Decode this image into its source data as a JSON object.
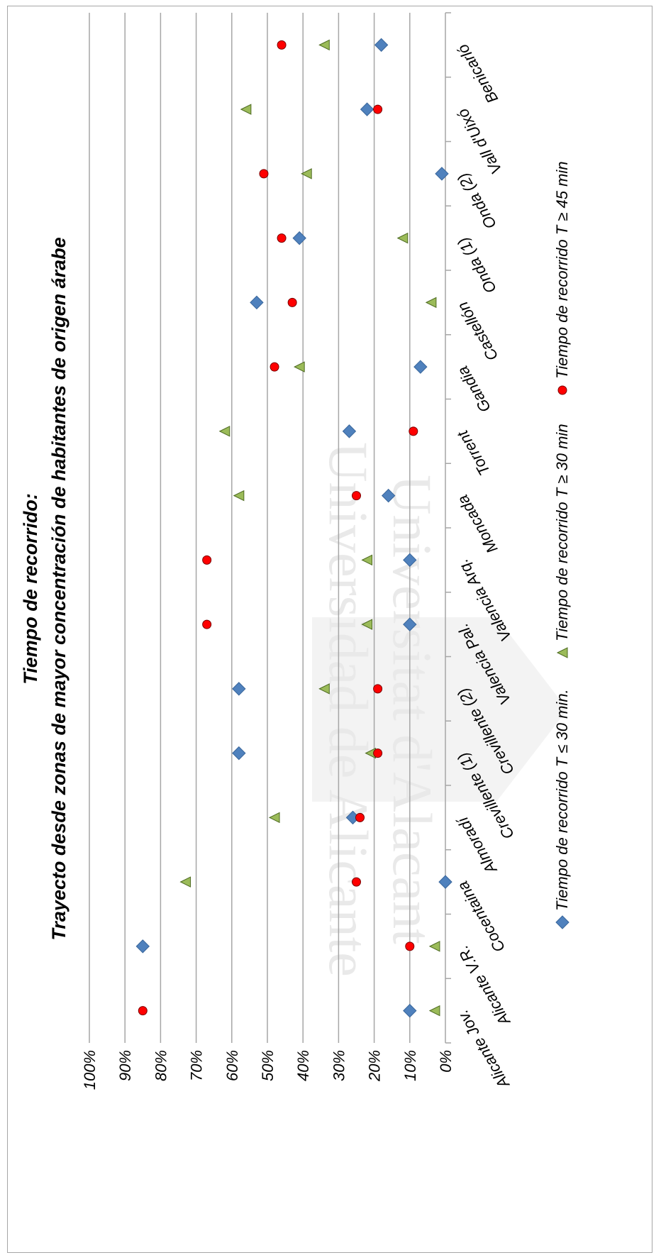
{
  "chart_data": {
    "type": "scatter",
    "title": "Tiempo de recorrido:",
    "subtitle": "Trayecto desde zonas de mayor concentración de habitantes de origen árabe",
    "categories": [
      "Alicante Jov.",
      "Alicante V.R.",
      "Cocentaina",
      "Almoradí",
      "Crevillente (1)",
      "Crevillente (2)",
      "Valencia Pal.",
      "Valencia Arq.",
      "Moncada",
      "Torrent",
      "Gandia",
      "Castellón",
      "Onda (1)",
      "Onda (2)",
      "Vall d'Uixó",
      "Benicarló"
    ],
    "y_ticks": [
      "0%",
      "10%",
      "20%",
      "30%",
      "40%",
      "50%",
      "60%",
      "70%",
      "80%",
      "90%",
      "100%"
    ],
    "ylim": [
      0,
      100
    ],
    "grid": true,
    "legend_position": "right",
    "series": [
      {
        "name": "Tiempo de recorrido T ≤ 30 min.",
        "marker": "diamond",
        "color": "#4f81bd",
        "values": [
          10,
          85,
          0,
          26,
          58,
          58,
          10,
          10,
          16,
          27,
          7,
          53,
          41,
          1,
          22,
          18
        ]
      },
      {
        "name": "Tiempo de recorrido T ≥ 30 min",
        "marker": "triangle",
        "color": "#9bbb59",
        "values": [
          3,
          3,
          73,
          48,
          21,
          34,
          22,
          22,
          58,
          62,
          41,
          4,
          12,
          39,
          56,
          34
        ]
      },
      {
        "name": "Tiempo de recorrido T ≥ 45 min",
        "marker": "circle",
        "color": "#ff0000",
        "values": [
          85,
          10,
          25,
          24,
          19,
          19,
          67,
          67,
          25,
          9,
          48,
          43,
          46,
          51,
          19,
          46
        ]
      }
    ]
  },
  "watermark": {
    "line1": "Universitat d'Alacant",
    "line2": "Universidad de Alicante"
  }
}
